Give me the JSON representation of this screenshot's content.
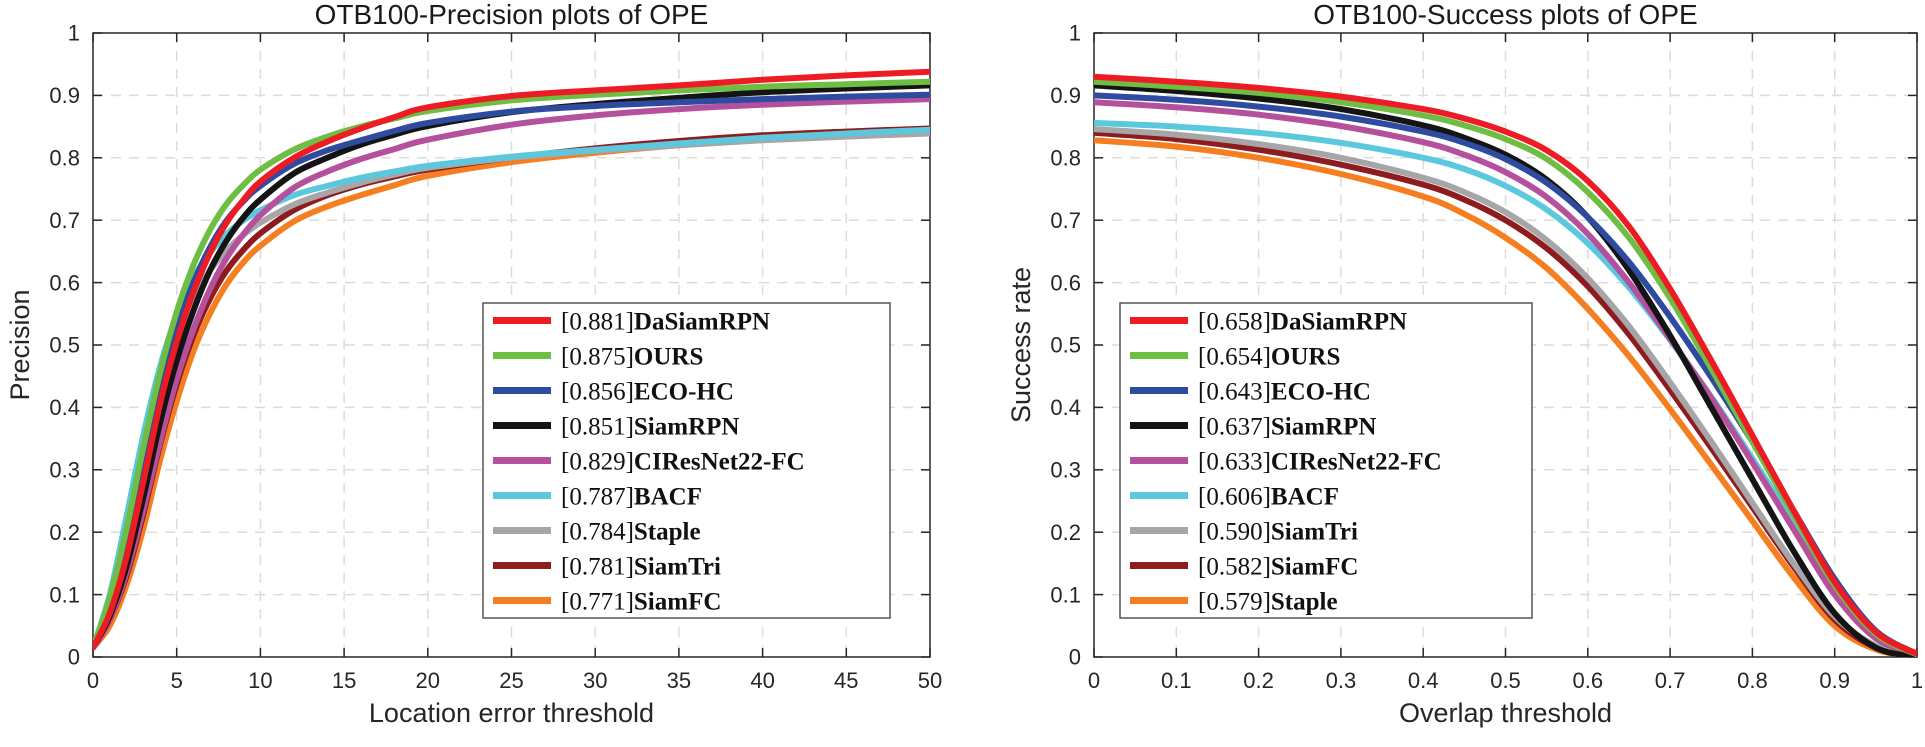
{
  "figure": {
    "background": "#ffffff",
    "axis_color": "#262626",
    "grid_color": "#dcdcdc",
    "legend_border_color": "#555555"
  },
  "chart_data": [
    {
      "type": "line",
      "title": "OTB100-Precision plots of OPE",
      "xlabel": "Location error threshold",
      "ylabel": "Precision",
      "xlim": [
        0,
        50
      ],
      "ylim": [
        0,
        1
      ],
      "xticks": [
        "0",
        "5",
        "10",
        "15",
        "20",
        "25",
        "30",
        "35",
        "40",
        "45",
        "50"
      ],
      "yticks": [
        "0",
        "0.1",
        "0.2",
        "0.3",
        "0.4",
        "0.5",
        "0.6",
        "0.7",
        "0.8",
        "0.9",
        "1"
      ],
      "grid": true,
      "legend_position": "inside-bottom-right",
      "series": [
        {
          "name": "DaSiamRPN",
          "score": 0.881,
          "score_label": "[0.881]",
          "color": "#ed1c24",
          "x": [
            0,
            1,
            2,
            3,
            4,
            5,
            6,
            7,
            8,
            9,
            10,
            12,
            14,
            16,
            18,
            20,
            25,
            30,
            35,
            40,
            45,
            50
          ],
          "y": [
            0.015,
            0.07,
            0.16,
            0.28,
            0.405,
            0.505,
            0.585,
            0.648,
            0.697,
            0.733,
            0.762,
            0.8,
            0.826,
            0.847,
            0.865,
            0.881,
            0.899,
            0.908,
            0.916,
            0.925,
            0.932,
            0.938
          ]
        },
        {
          "name": "OURS",
          "score": 0.875,
          "score_label": "[0.875]",
          "color": "#6fbe44",
          "x": [
            0,
            1,
            2,
            3,
            4,
            5,
            6,
            7,
            8,
            9,
            10,
            12,
            14,
            16,
            18,
            20,
            25,
            30,
            35,
            40,
            45,
            50
          ],
          "y": [
            0.015,
            0.095,
            0.205,
            0.335,
            0.455,
            0.553,
            0.628,
            0.685,
            0.727,
            0.757,
            0.781,
            0.813,
            0.834,
            0.85,
            0.863,
            0.875,
            0.892,
            0.901,
            0.908,
            0.914,
            0.918,
            0.922
          ]
        },
        {
          "name": "ECO-HC",
          "score": 0.856,
          "score_label": "[0.856]",
          "color": "#2e4ba0",
          "x": [
            0,
            1,
            2,
            3,
            4,
            5,
            6,
            7,
            8,
            9,
            10,
            12,
            14,
            16,
            18,
            20,
            25,
            30,
            35,
            40,
            45,
            50
          ],
          "y": [
            0.015,
            0.085,
            0.185,
            0.305,
            0.425,
            0.525,
            0.6,
            0.657,
            0.7,
            0.731,
            0.755,
            0.79,
            0.812,
            0.828,
            0.843,
            0.856,
            0.874,
            0.883,
            0.889,
            0.894,
            0.898,
            0.901
          ]
        },
        {
          "name": "SiamRPN",
          "score": 0.851,
          "score_label": "[0.851]",
          "color": "#141414",
          "x": [
            0,
            1,
            2,
            3,
            4,
            5,
            6,
            7,
            8,
            9,
            10,
            12,
            14,
            16,
            18,
            20,
            25,
            30,
            35,
            40,
            45,
            50
          ],
          "y": [
            0.015,
            0.065,
            0.145,
            0.255,
            0.375,
            0.475,
            0.555,
            0.62,
            0.668,
            0.705,
            0.733,
            0.775,
            0.8,
            0.821,
            0.837,
            0.851,
            0.873,
            0.886,
            0.896,
            0.905,
            0.911,
            0.916
          ]
        },
        {
          "name": "CIResNet22-FC",
          "score": 0.829,
          "score_label": "[0.829]",
          "color": "#b5509c",
          "x": [
            0,
            1,
            2,
            3,
            4,
            5,
            6,
            7,
            8,
            9,
            10,
            12,
            14,
            16,
            18,
            20,
            25,
            30,
            35,
            40,
            45,
            50
          ],
          "y": [
            0.015,
            0.06,
            0.135,
            0.235,
            0.345,
            0.445,
            0.525,
            0.59,
            0.64,
            0.678,
            0.708,
            0.752,
            0.778,
            0.798,
            0.814,
            0.829,
            0.853,
            0.868,
            0.878,
            0.885,
            0.89,
            0.894
          ]
        },
        {
          "name": "BACF",
          "score": 0.787,
          "score_label": "[0.787]",
          "color": "#5bc8de",
          "x": [
            0,
            1,
            2,
            3,
            4,
            5,
            6,
            7,
            8,
            9,
            10,
            12,
            14,
            16,
            18,
            20,
            25,
            30,
            35,
            40,
            45,
            50
          ],
          "y": [
            0.015,
            0.1,
            0.225,
            0.355,
            0.465,
            0.548,
            0.607,
            0.648,
            0.678,
            0.7,
            0.716,
            0.74,
            0.755,
            0.768,
            0.778,
            0.787,
            0.802,
            0.813,
            0.823,
            0.832,
            0.839,
            0.845
          ]
        },
        {
          "name": "Staple",
          "score": 0.784,
          "score_label": "[0.784]",
          "color": "#a6a6a8",
          "x": [
            0,
            1,
            2,
            3,
            4,
            5,
            6,
            7,
            8,
            9,
            10,
            12,
            14,
            16,
            18,
            20,
            25,
            30,
            35,
            40,
            45,
            50
          ],
          "y": [
            0.015,
            0.09,
            0.2,
            0.325,
            0.437,
            0.52,
            0.578,
            0.62,
            0.652,
            0.677,
            0.696,
            0.725,
            0.744,
            0.76,
            0.773,
            0.784,
            0.8,
            0.811,
            0.82,
            0.828,
            0.834,
            0.839
          ]
        },
        {
          "name": "SiamTri",
          "score": 0.781,
          "score_label": "[0.781]",
          "color": "#8e1b1e",
          "x": [
            0,
            1,
            2,
            3,
            4,
            5,
            6,
            7,
            8,
            9,
            10,
            12,
            14,
            16,
            18,
            20,
            25,
            30,
            35,
            40,
            45,
            50
          ],
          "y": [
            0.015,
            0.06,
            0.13,
            0.228,
            0.34,
            0.437,
            0.515,
            0.575,
            0.62,
            0.653,
            0.679,
            0.716,
            0.74,
            0.757,
            0.77,
            0.781,
            0.8,
            0.815,
            0.827,
            0.836,
            0.842,
            0.847
          ]
        },
        {
          "name": "SiamFC",
          "score": 0.771,
          "score_label": "[0.771]",
          "color": "#f57e20",
          "x": [
            0,
            1,
            2,
            3,
            4,
            5,
            6,
            7,
            8,
            9,
            10,
            12,
            14,
            16,
            18,
            20,
            25,
            30,
            35,
            40,
            45,
            50
          ],
          "y": [
            0.015,
            0.05,
            0.115,
            0.205,
            0.315,
            0.41,
            0.49,
            0.551,
            0.598,
            0.633,
            0.659,
            0.698,
            0.722,
            0.74,
            0.756,
            0.771,
            0.793,
            0.808,
            0.82,
            0.829,
            0.836,
            0.842
          ]
        }
      ]
    },
    {
      "type": "line",
      "title": "OTB100-Success plots of OPE",
      "xlabel": "Overlap threshold",
      "ylabel": "Success rate",
      "xlim": [
        0,
        1
      ],
      "ylim": [
        0,
        1
      ],
      "xticks": [
        "0",
        "0.1",
        "0.2",
        "0.3",
        "0.4",
        "0.5",
        "0.6",
        "0.7",
        "0.8",
        "0.9",
        "1"
      ],
      "yticks": [
        "0",
        "0.1",
        "0.2",
        "0.3",
        "0.4",
        "0.5",
        "0.6",
        "0.7",
        "0.8",
        "0.9",
        "1"
      ],
      "grid": true,
      "legend_position": "inside-bottom-left",
      "series": [
        {
          "name": "DaSiamRPN",
          "score": 0.658,
          "score_label": "[0.658]",
          "color": "#ed1c24",
          "x": [
            0,
            0.1,
            0.2,
            0.3,
            0.4,
            0.45,
            0.5,
            0.55,
            0.6,
            0.65,
            0.7,
            0.75,
            0.8,
            0.85,
            0.9,
            0.95,
            1
          ],
          "y": [
            0.93,
            0.922,
            0.912,
            0.898,
            0.878,
            0.863,
            0.842,
            0.812,
            0.763,
            0.69,
            0.59,
            0.475,
            0.355,
            0.235,
            0.12,
            0.04,
            0.005
          ]
        },
        {
          "name": "OURS",
          "score": 0.654,
          "score_label": "[0.654]",
          "color": "#6fbe44",
          "x": [
            0,
            0.1,
            0.2,
            0.3,
            0.4,
            0.45,
            0.5,
            0.55,
            0.6,
            0.65,
            0.7,
            0.75,
            0.8,
            0.85,
            0.9,
            0.95,
            1
          ],
          "y": [
            0.922,
            0.914,
            0.904,
            0.889,
            0.868,
            0.852,
            0.83,
            0.798,
            0.745,
            0.672,
            0.575,
            0.462,
            0.345,
            0.228,
            0.115,
            0.037,
            0.004
          ]
        },
        {
          "name": "ECO-HC",
          "score": 0.643,
          "score_label": "[0.643]",
          "color": "#2e4ba0",
          "x": [
            0,
            0.1,
            0.2,
            0.3,
            0.4,
            0.45,
            0.5,
            0.55,
            0.6,
            0.65,
            0.7,
            0.75,
            0.8,
            0.85,
            0.9,
            0.95,
            1
          ],
          "y": [
            0.9,
            0.893,
            0.882,
            0.866,
            0.842,
            0.824,
            0.798,
            0.76,
            0.705,
            0.633,
            0.545,
            0.448,
            0.345,
            0.235,
            0.125,
            0.042,
            0.005
          ]
        },
        {
          "name": "SiamRPN",
          "score": 0.637,
          "score_label": "[0.637]",
          "color": "#141414",
          "x": [
            0,
            0.1,
            0.2,
            0.3,
            0.4,
            0.45,
            0.5,
            0.55,
            0.6,
            0.65,
            0.7,
            0.75,
            0.8,
            0.85,
            0.9,
            0.95,
            1
          ],
          "y": [
            0.916,
            0.907,
            0.895,
            0.878,
            0.852,
            0.832,
            0.805,
            0.765,
            0.705,
            0.62,
            0.515,
            0.4,
            0.285,
            0.17,
            0.07,
            0.015,
            0
          ]
        },
        {
          "name": "CIResNet22-FC",
          "score": 0.633,
          "score_label": "[0.633]",
          "color": "#b5509c",
          "x": [
            0,
            0.1,
            0.2,
            0.3,
            0.4,
            0.45,
            0.5,
            0.55,
            0.6,
            0.65,
            0.7,
            0.75,
            0.8,
            0.85,
            0.9,
            0.95,
            1
          ],
          "y": [
            0.889,
            0.881,
            0.869,
            0.851,
            0.825,
            0.805,
            0.777,
            0.737,
            0.678,
            0.6,
            0.51,
            0.415,
            0.312,
            0.205,
            0.1,
            0.03,
            0.004
          ]
        },
        {
          "name": "BACF",
          "score": 0.606,
          "score_label": "[0.606]",
          "color": "#5bc8de",
          "x": [
            0,
            0.1,
            0.2,
            0.3,
            0.4,
            0.45,
            0.5,
            0.55,
            0.6,
            0.65,
            0.7,
            0.75,
            0.8,
            0.85,
            0.9,
            0.95,
            1
          ],
          "y": [
            0.856,
            0.85,
            0.84,
            0.824,
            0.8,
            0.782,
            0.755,
            0.717,
            0.663,
            0.592,
            0.508,
            0.417,
            0.318,
            0.215,
            0.112,
            0.035,
            0.004
          ]
        },
        {
          "name": "SiamTri",
          "score": 0.59,
          "score_label": "[0.590]",
          "color": "#a6a6a8",
          "x": [
            0,
            0.1,
            0.2,
            0.3,
            0.4,
            0.45,
            0.5,
            0.55,
            0.6,
            0.65,
            0.7,
            0.75,
            0.8,
            0.85,
            0.9,
            0.95,
            1
          ],
          "y": [
            0.846,
            0.837,
            0.822,
            0.8,
            0.768,
            0.745,
            0.713,
            0.668,
            0.607,
            0.53,
            0.44,
            0.345,
            0.247,
            0.15,
            0.065,
            0.018,
            0
          ]
        },
        {
          "name": "SiamFC",
          "score": 0.582,
          "score_label": "[0.582]",
          "color": "#8e1b1e",
          "x": [
            0,
            0.1,
            0.2,
            0.3,
            0.4,
            0.45,
            0.5,
            0.55,
            0.6,
            0.65,
            0.7,
            0.75,
            0.8,
            0.85,
            0.9,
            0.95,
            1
          ],
          "y": [
            0.84,
            0.83,
            0.813,
            0.789,
            0.757,
            0.733,
            0.7,
            0.655,
            0.594,
            0.517,
            0.428,
            0.335,
            0.24,
            0.145,
            0.06,
            0.015,
            0
          ]
        },
        {
          "name": "Staple",
          "score": 0.579,
          "score_label": "[0.579]",
          "color": "#f57e20",
          "x": [
            0,
            0.1,
            0.2,
            0.3,
            0.4,
            0.45,
            0.5,
            0.55,
            0.6,
            0.65,
            0.7,
            0.75,
            0.8,
            0.85,
            0.9,
            0.95,
            1
          ],
          "y": [
            0.828,
            0.818,
            0.8,
            0.774,
            0.738,
            0.71,
            0.672,
            0.623,
            0.558,
            0.482,
            0.397,
            0.308,
            0.218,
            0.128,
            0.05,
            0.012,
            0
          ]
        }
      ]
    }
  ]
}
